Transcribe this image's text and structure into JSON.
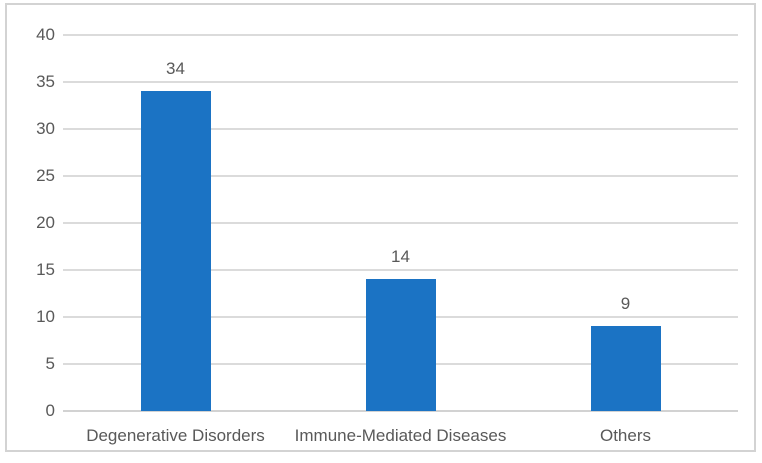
{
  "colors": {
    "bar_fill": "#1b73c4",
    "gridline": "#dbdbdb",
    "axis_line": "#d2d2d2",
    "text": "#595959",
    "frame_border": "#d3d3d3",
    "background": "#ffffff"
  },
  "chart_data": {
    "type": "bar",
    "title": "",
    "xlabel": "",
    "ylabel": "",
    "categories": [
      "Degenerative Disorders",
      "Immune-Mediated Diseases",
      "Others"
    ],
    "values": [
      34,
      14,
      9
    ],
    "data_labels": [
      "34",
      "14",
      "9"
    ],
    "ylim": [
      0,
      40
    ],
    "yticks": [
      0,
      5,
      10,
      15,
      20,
      25,
      30,
      35,
      40
    ],
    "grid": "horizontal",
    "legend": "none",
    "bar_color": "#1b73c4"
  }
}
